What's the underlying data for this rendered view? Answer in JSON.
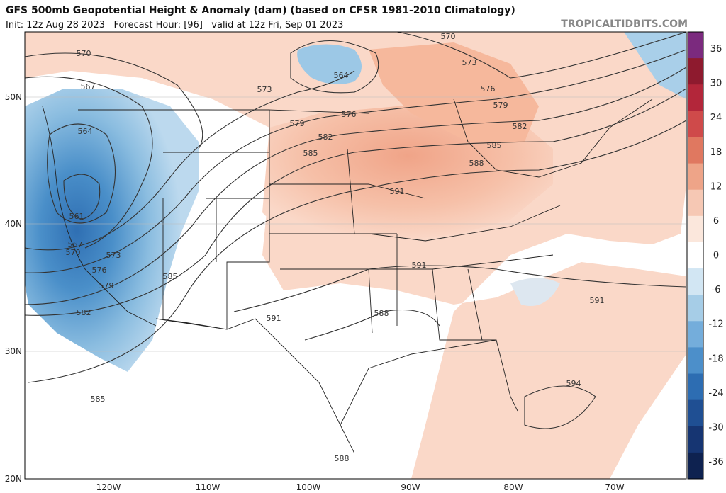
{
  "header": {
    "title": "GFS 500mb Geopotential Height & Anomaly (dam) (based on CFSR 1981-2010 Climatology)",
    "subtitle": "Init: 12z Aug 28 2023   Forecast Hour: [96]   valid at 12z Fri, Sep 01 2023",
    "watermark": "TROPICALTIDBITS.COM"
  },
  "map": {
    "lat_labels": [
      "50N",
      "40N",
      "30N",
      "20N"
    ],
    "lon_labels": [
      "120W",
      "110W",
      "100W",
      "90W",
      "80W",
      "70W"
    ],
    "contour_labels": [
      570,
      567,
      564,
      561,
      567,
      570,
      573,
      576,
      579,
      582,
      585,
      573,
      564,
      570,
      573,
      576,
      579,
      582,
      585,
      588,
      591,
      576,
      579,
      582,
      585,
      585,
      591,
      588,
      591,
      591,
      594,
      588
    ]
  },
  "colorbar": {
    "ticks": [
      36,
      30,
      24,
      18,
      12,
      6,
      0,
      -6,
      -12,
      -18,
      -24,
      -30,
      -36
    ]
  }
}
